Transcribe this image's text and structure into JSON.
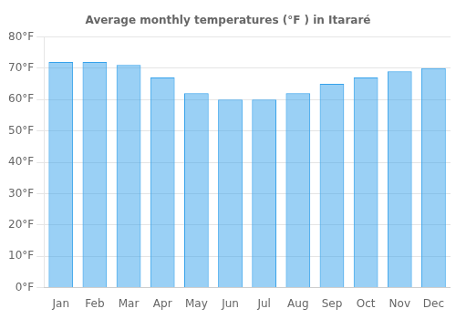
{
  "chart_data": {
    "type": "bar",
    "title": "Average monthly temperatures (°F ) in Itararé",
    "categories": [
      "Jan",
      "Feb",
      "Mar",
      "Apr",
      "May",
      "Jun",
      "Jul",
      "Aug",
      "Sep",
      "Oct",
      "Nov",
      "Dec"
    ],
    "values": [
      72,
      72,
      71,
      67,
      62,
      60,
      60,
      62,
      65,
      67,
      69,
      70
    ],
    "ylim": [
      0,
      80
    ],
    "yticks": [
      {
        "value": 0,
        "label": "0°F"
      },
      {
        "value": 10,
        "label": "10°F"
      },
      {
        "value": 20,
        "label": "20°F"
      },
      {
        "value": 30,
        "label": "30°F"
      },
      {
        "value": 40,
        "label": "40°F"
      },
      {
        "value": 50,
        "label": "50°F"
      },
      {
        "value": 60,
        "label": "60°F"
      },
      {
        "value": 70,
        "label": "70°F"
      },
      {
        "value": 80,
        "label": "80°F"
      }
    ],
    "grid": true
  }
}
